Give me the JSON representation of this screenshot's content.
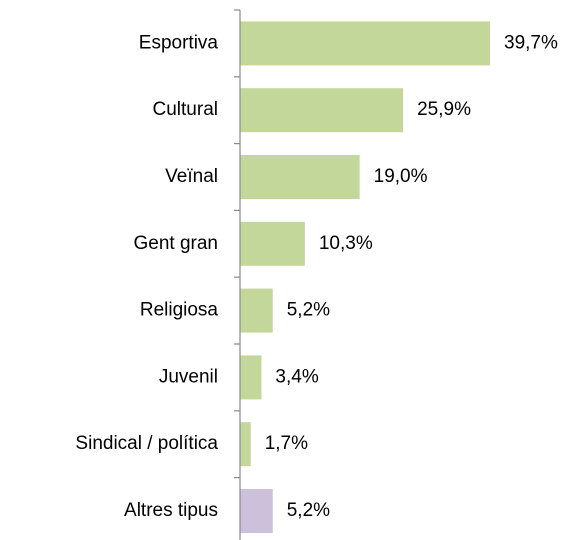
{
  "chart_data": {
    "type": "bar",
    "orientation": "horizontal",
    "categories": [
      "Esportiva",
      "Cultural",
      "Veïnal",
      "Gent gran",
      "Religiosa",
      "Juvenil",
      "Sindical / política",
      "Altres tipus"
    ],
    "values": [
      39.7,
      25.9,
      19.0,
      10.3,
      5.2,
      3.4,
      1.7,
      5.2
    ],
    "value_labels": [
      "39,7%",
      "25,9%",
      "19,0%",
      "10,3%",
      "5,2%",
      "3,4%",
      "1,7%",
      "5,2%"
    ],
    "colors": [
      "#c4d79b",
      "#c4d79b",
      "#c4d79b",
      "#c4d79b",
      "#c4d79b",
      "#c4d79b",
      "#c4d79b",
      "#ccc0da"
    ]
  }
}
